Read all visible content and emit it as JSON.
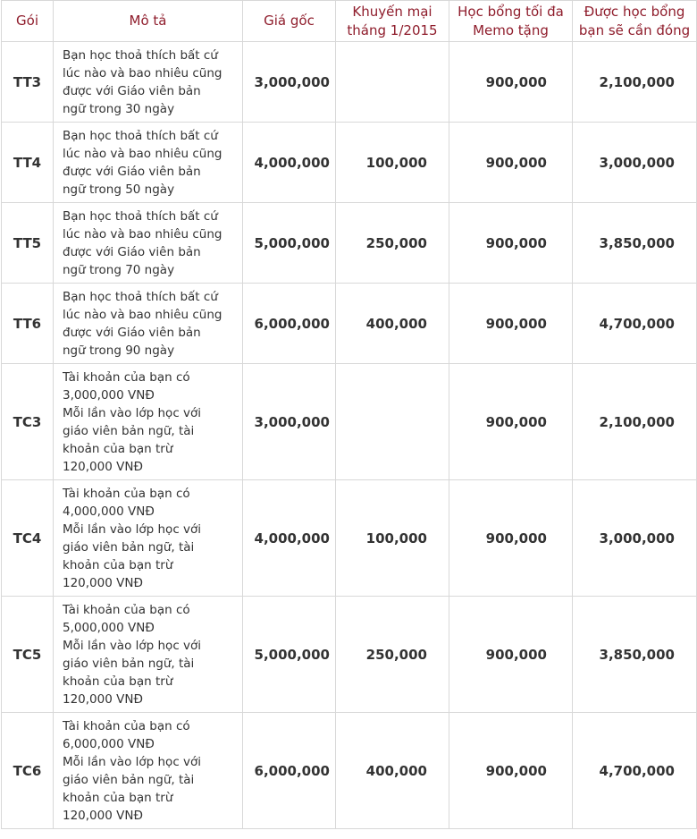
{
  "table": {
    "headers": {
      "package": "Gói",
      "description": "Mô tả",
      "original_price": "Giá gốc",
      "promotion": "Khuyến mại tháng 1/2015",
      "scholarship": "Học bổng tối đa Memo tặng",
      "final_price": "Được học bổng bạn sẽ cần đóng"
    },
    "rows": [
      {
        "package": "TT3",
        "description": "Bạn học thoả thích bất cứ\nlúc nào và bao nhiêu cũng\nđược với Giáo viên bản\nngữ trong 30 ngày",
        "original_price": "3,000,000",
        "promotion": "",
        "scholarship": "900,000",
        "final_price": "2,100,000"
      },
      {
        "package": "TT4",
        "description": "Bạn học thoả thích bất cứ\nlúc nào và bao nhiêu cũng\nđược với Giáo viên bản\nngữ trong 50 ngày",
        "original_price": "4,000,000",
        "promotion": "100,000",
        "scholarship": "900,000",
        "final_price": "3,000,000"
      },
      {
        "package": "TT5",
        "description": "Bạn học thoả thích bất cứ\nlúc nào và bao nhiêu cũng\nđược với Giáo viên bản\nngữ trong 70 ngày",
        "original_price": "5,000,000",
        "promotion": "250,000",
        "scholarship": "900,000",
        "final_price": "3,850,000"
      },
      {
        "package": "TT6",
        "description": "Bạn học thoả thích bất cứ\nlúc nào và bao nhiêu cũng\nđược với Giáo viên bản\nngữ trong 90 ngày",
        "original_price": "6,000,000",
        "promotion": "400,000",
        "scholarship": "900,000",
        "final_price": "4,700,000"
      },
      {
        "package": "TC3",
        "description": "Tài khoản của bạn có\n3,000,000 VNĐ\nMỗi lần vào lớp học với\ngiáo viên bản ngữ, tài\nkhoản của bạn trừ\n120,000 VNĐ",
        "original_price": "3,000,000",
        "promotion": "",
        "scholarship": "900,000",
        "final_price": "2,100,000"
      },
      {
        "package": "TC4",
        "description": "Tài khoản của bạn có\n4,000,000 VNĐ\nMỗi lần vào lớp học với\ngiáo viên bản ngữ, tài\nkhoản của bạn trừ\n120,000 VNĐ",
        "original_price": "4,000,000",
        "promotion": "100,000",
        "scholarship": "900,000",
        "final_price": "3,000,000"
      },
      {
        "package": "TC5",
        "description": "Tài khoản của bạn có\n5,000,000 VNĐ\nMỗi lần vào lớp học với\ngiáo viên bản ngữ, tài\nkhoản của bạn trừ\n120,000 VNĐ",
        "original_price": "5,000,000",
        "promotion": "250,000",
        "scholarship": "900,000",
        "final_price": "3,850,000"
      },
      {
        "package": "TC6",
        "description": "Tài khoản của bạn có\n6,000,000 VNĐ\nMỗi lần vào lớp học với\ngiáo viên bản ngữ, tài\nkhoản của bạn trừ\n120,000 VNĐ",
        "original_price": "6,000,000",
        "promotion": "400,000",
        "scholarship": "900,000",
        "final_price": "4,700,000"
      }
    ]
  },
  "colors": {
    "header_text": "#8f1d2c",
    "body_text": "#333333",
    "border": "#d8d8d8"
  }
}
